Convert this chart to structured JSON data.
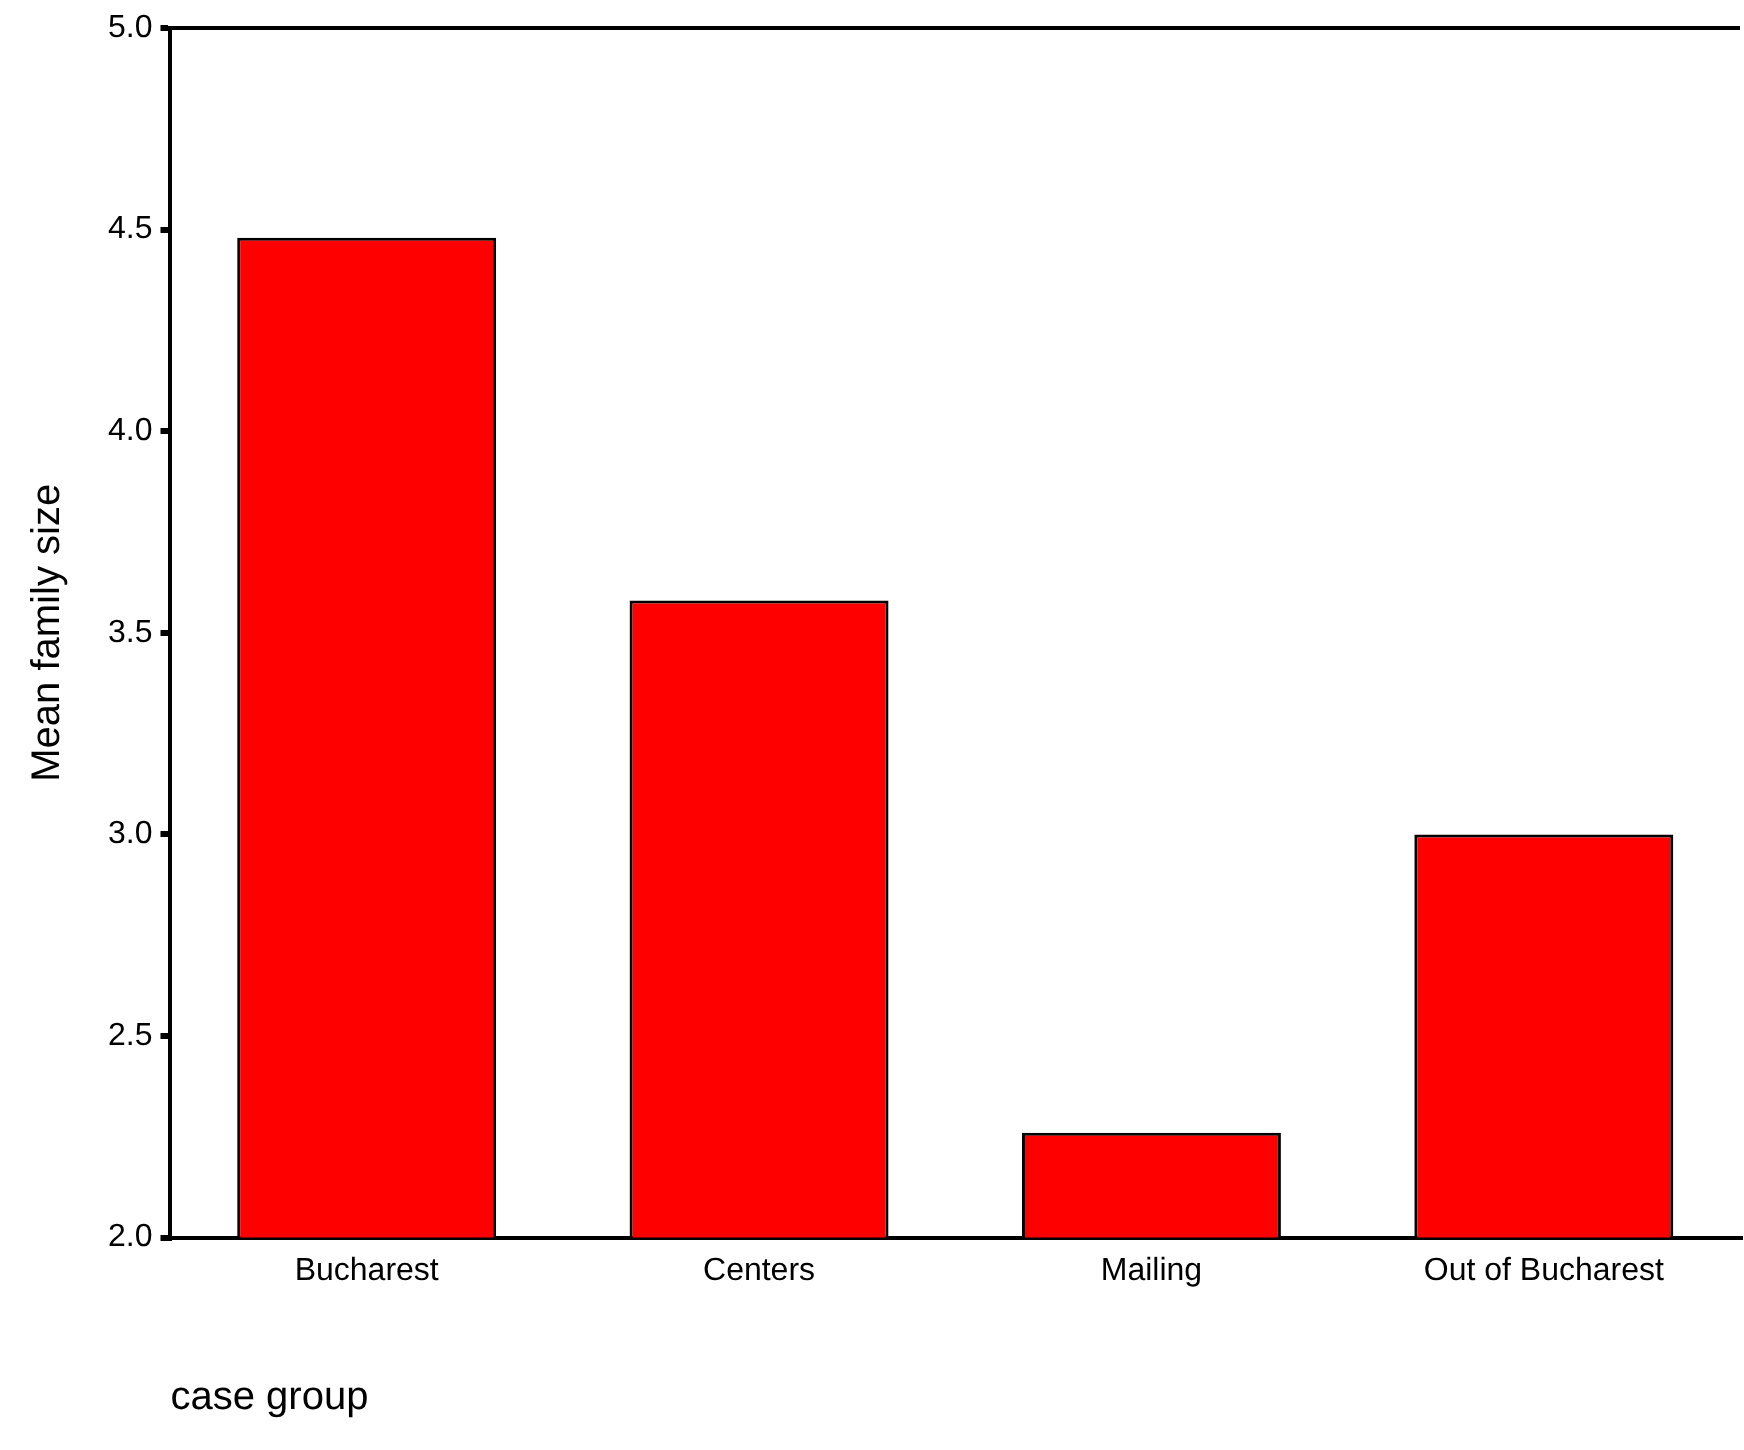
{
  "chart_data": {
    "type": "bar",
    "xlabel": "case group",
    "ylabel": "Mean family size",
    "categories": [
      "Bucharest",
      "Centers",
      "Mailing",
      "Out of Bucharest"
    ],
    "values": [
      4.48,
      3.58,
      2.26,
      3.0
    ],
    "color": "#ff0000",
    "ylim": [
      2,
      5
    ],
    "yticks": [
      {
        "value": 2,
        "label": "2.0"
      },
      {
        "value": 2.5,
        "label": "2.5"
      },
      {
        "value": 3,
        "label": "3.0"
      },
      {
        "value": 3.5,
        "label": "3.5"
      },
      {
        "value": 4,
        "label": "4.0"
      },
      {
        "value": 4.5,
        "label": "4.5"
      },
      {
        "value": 5,
        "label": "5.0"
      }
    ],
    "grid": false,
    "legend": false
  }
}
